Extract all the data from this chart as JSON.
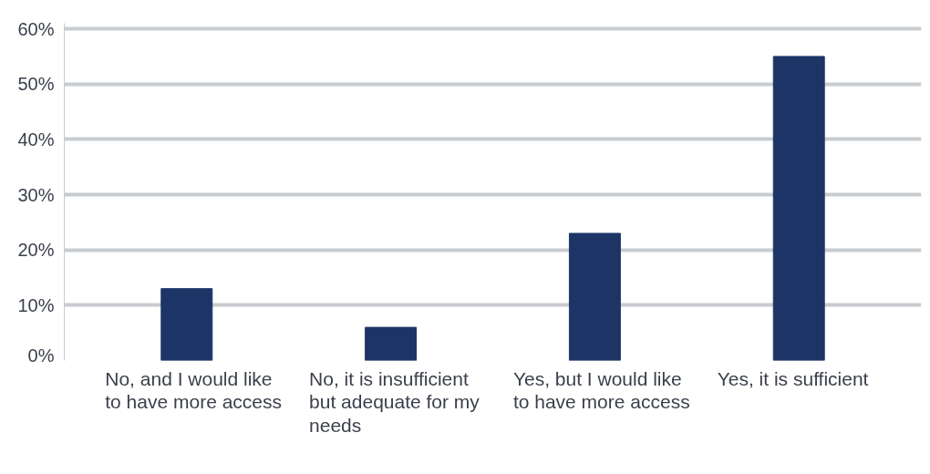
{
  "chart_data": {
    "type": "bar",
    "categories": [
      "No, and I would like to have more access",
      "No, it is insufficient but adequate for my needs",
      "Yes, but I would like to have more access",
      "Yes, it is sufficient"
    ],
    "values": [
      13,
      6,
      23,
      55
    ],
    "color": "#1d3566",
    "ylim": [
      0,
      61
    ],
    "yticks": [
      {
        "value": 0,
        "label": "0%"
      },
      {
        "value": 10,
        "label": "10%"
      },
      {
        "value": 20,
        "label": "20%"
      },
      {
        "value": 30,
        "label": "30%"
      },
      {
        "value": 40,
        "label": "40%"
      },
      {
        "value": 50,
        "label": "50%"
      },
      {
        "value": 60,
        "label": "60%"
      }
    ],
    "grid": "y"
  }
}
